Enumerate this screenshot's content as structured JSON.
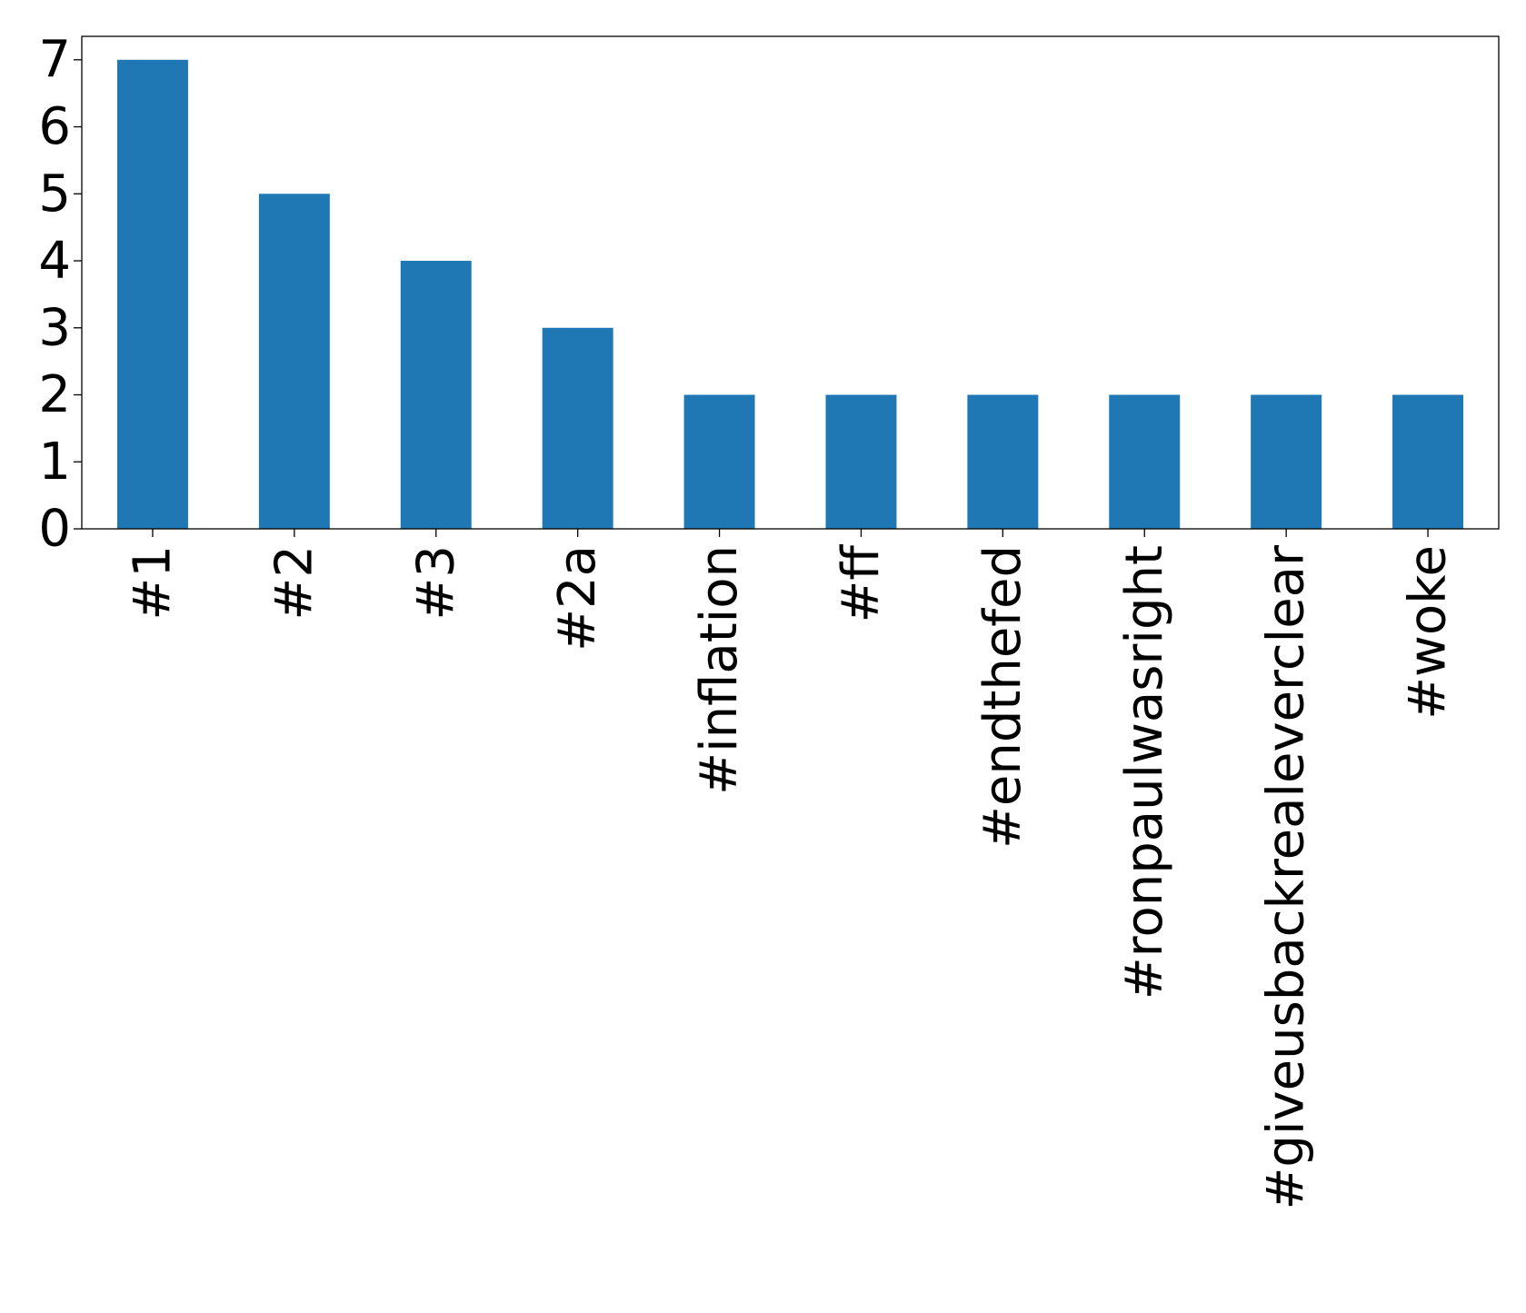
{
  "chart_data": {
    "type": "bar",
    "title": "",
    "xlabel": "",
    "ylabel": "",
    "categories": [
      "#1",
      "#2",
      "#3",
      "#2a",
      "#inflation",
      "#ff",
      "#endthefed",
      "#ronpaulwasright",
      "#giveusbackrealeverclear",
      "#woke"
    ],
    "values": [
      7,
      5,
      4,
      3,
      2,
      2,
      2,
      2,
      2,
      2
    ],
    "ylim": [
      0,
      7.35
    ],
    "yticks": [
      0,
      1,
      2,
      3,
      4,
      5,
      6,
      7
    ],
    "grid": false,
    "legend": "none",
    "bar_color": "#1f77b4"
  }
}
